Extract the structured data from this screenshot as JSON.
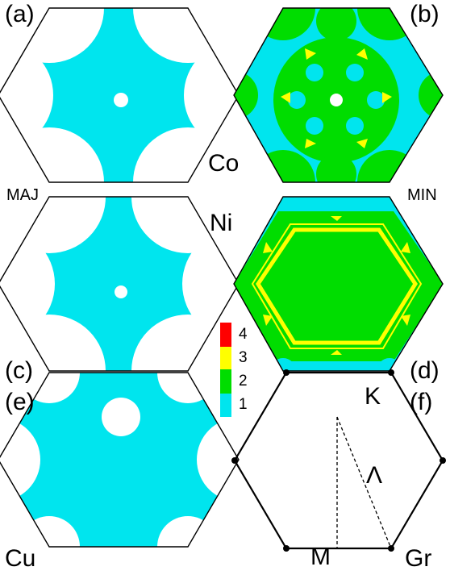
{
  "panel_labels": {
    "a": "(a)",
    "b": "(b)",
    "c": "(c)",
    "d": "(d)",
    "e": "(e)",
    "f": "(f)"
  },
  "metal_labels": {
    "co": "Co",
    "ni": "Ni",
    "cu": "Cu",
    "gr": "Gr"
  },
  "spin_labels": {
    "majority": "MAJ",
    "minority": "MIN"
  },
  "bz_labels": {
    "k_point": "K",
    "m_point": "M",
    "lambda": "Λ"
  },
  "colorbar": {
    "ticks": [
      "4",
      "3",
      "2",
      "1"
    ],
    "colors": [
      "#ff0000",
      "#ffff00",
      "#00dd00",
      "#00e5ee"
    ]
  },
  "colors": {
    "one_channel": "#00e5ee",
    "two_channels": "#00dd00",
    "three_channels": "#ffff00",
    "four_channels": "#ff0000",
    "zero_channels": "#ffffff",
    "outline": "#000000"
  }
}
